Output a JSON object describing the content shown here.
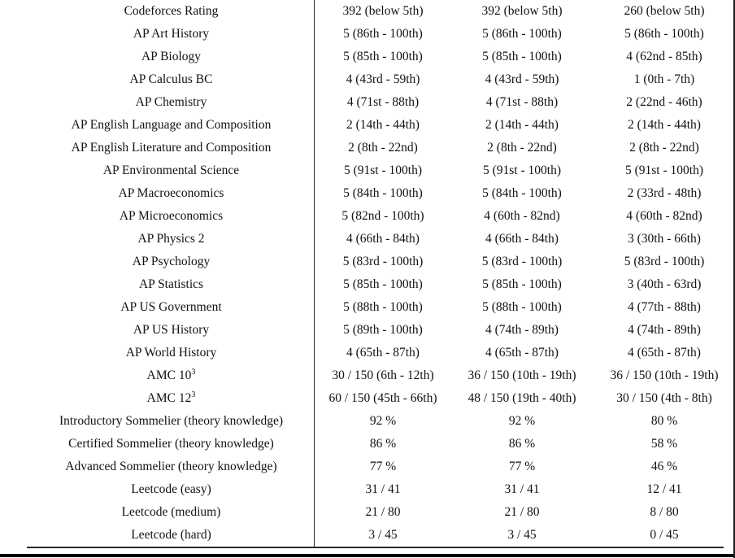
{
  "page": {
    "background": "#ffffff",
    "text_color": "#121212",
    "rule_color": "#2b2b2b",
    "bottom_bar_color": "#000000"
  },
  "table": {
    "columns": 3,
    "rows": [
      {
        "label": "Codeforces Rating",
        "label_sup": "",
        "values": [
          "392 (below 5th)",
          "392 (below 5th)",
          "260 (below 5th)"
        ]
      },
      {
        "label": "AP Art History",
        "label_sup": "",
        "values": [
          "5 (86th - 100th)",
          "5 (86th - 100th)",
          "5 (86th - 100th)"
        ]
      },
      {
        "label": "AP Biology",
        "label_sup": "",
        "values": [
          "5 (85th - 100th)",
          "5 (85th - 100th)",
          "4 (62nd - 85th)"
        ]
      },
      {
        "label": "AP Calculus BC",
        "label_sup": "",
        "values": [
          "4 (43rd - 59th)",
          "4 (43rd - 59th)",
          "1 (0th - 7th)"
        ]
      },
      {
        "label": "AP Chemistry",
        "label_sup": "",
        "values": [
          "4 (71st - 88th)",
          "4 (71st - 88th)",
          "2 (22nd - 46th)"
        ]
      },
      {
        "label": "AP English Language and Composition",
        "label_sup": "",
        "values": [
          "2 (14th - 44th)",
          "2 (14th - 44th)",
          "2 (14th - 44th)"
        ]
      },
      {
        "label": "AP English Literature and Composition",
        "label_sup": "",
        "values": [
          "2 (8th - 22nd)",
          "2 (8th - 22nd)",
          "2 (8th - 22nd)"
        ]
      },
      {
        "label": "AP Environmental Science",
        "label_sup": "",
        "values": [
          "5 (91st - 100th)",
          "5 (91st - 100th)",
          "5 (91st - 100th)"
        ]
      },
      {
        "label": "AP Macroeconomics",
        "label_sup": "",
        "values": [
          "5 (84th - 100th)",
          "5 (84th - 100th)",
          "2 (33rd - 48th)"
        ]
      },
      {
        "label": "AP Microeconomics",
        "label_sup": "",
        "values": [
          "5 (82nd - 100th)",
          "4 (60th - 82nd)",
          "4 (60th - 82nd)"
        ]
      },
      {
        "label": "AP Physics 2",
        "label_sup": "",
        "values": [
          "4 (66th - 84th)",
          "4 (66th - 84th)",
          "3 (30th - 66th)"
        ]
      },
      {
        "label": "AP Psychology",
        "label_sup": "",
        "values": [
          "5 (83rd - 100th)",
          "5 (83rd - 100th)",
          "5 (83rd - 100th)"
        ]
      },
      {
        "label": "AP Statistics",
        "label_sup": "",
        "values": [
          "5 (85th - 100th)",
          "5 (85th - 100th)",
          "3 (40th - 63rd)"
        ]
      },
      {
        "label": "AP US Government",
        "label_sup": "",
        "values": [
          "5 (88th - 100th)",
          "5 (88th - 100th)",
          "4 (77th - 88th)"
        ]
      },
      {
        "label": "AP US History",
        "label_sup": "",
        "values": [
          "5 (89th - 100th)",
          "4 (74th - 89th)",
          "4 (74th - 89th)"
        ]
      },
      {
        "label": "AP World History",
        "label_sup": "",
        "values": [
          "4 (65th - 87th)",
          "4 (65th - 87th)",
          "4 (65th - 87th)"
        ]
      },
      {
        "label": "AMC 10",
        "label_sup": "3",
        "values": [
          "30 / 150 (6th - 12th)",
          "36 / 150 (10th - 19th)",
          "36 / 150 (10th - 19th)"
        ]
      },
      {
        "label": "AMC 12",
        "label_sup": "3",
        "values": [
          "60 / 150 (45th - 66th)",
          "48 / 150 (19th - 40th)",
          "30 / 150 (4th - 8th)"
        ]
      },
      {
        "label": "Introductory Sommelier (theory knowledge)",
        "label_sup": "",
        "values": [
          "92 %",
          "92 %",
          "80 %"
        ]
      },
      {
        "label": "Certified Sommelier (theory knowledge)",
        "label_sup": "",
        "values": [
          "86 %",
          "86 %",
          "58 %"
        ]
      },
      {
        "label": "Advanced Sommelier (theory knowledge)",
        "label_sup": "",
        "values": [
          "77 %",
          "77 %",
          "46 %"
        ]
      },
      {
        "label": "Leetcode (easy)",
        "label_sup": "",
        "values": [
          "31 / 41",
          "31 / 41",
          "12 / 41"
        ]
      },
      {
        "label": "Leetcode (medium)",
        "label_sup": "",
        "values": [
          "21 / 80",
          "21 / 80",
          "8 / 80"
        ]
      },
      {
        "label": "Leetcode (hard)",
        "label_sup": "",
        "values": [
          "3 / 45",
          "3 / 45",
          "0 / 45"
        ]
      }
    ]
  }
}
